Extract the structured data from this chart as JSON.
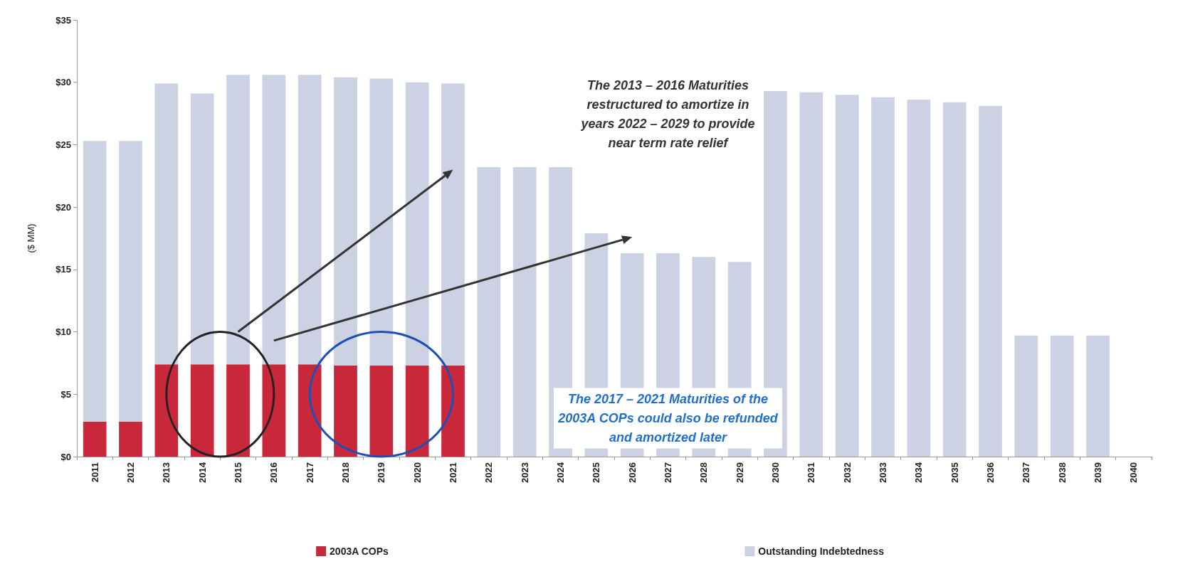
{
  "chart_data": {
    "type": "bar",
    "stacked": true,
    "ylabel": "($ MM)",
    "categories": [
      "2011",
      "2012",
      "2013",
      "2014",
      "2015",
      "2016",
      "2017",
      "2018",
      "2019",
      "2020",
      "2021",
      "2022",
      "2023",
      "2024",
      "2025",
      "2026",
      "2027",
      "2028",
      "2029",
      "2030",
      "2031",
      "2032",
      "2033",
      "2034",
      "2035",
      "2036",
      "2037",
      "2038",
      "2039",
      "2040"
    ],
    "series": [
      {
        "name": "2003A COPs",
        "color": "#c8283a",
        "values": [
          2.8,
          2.8,
          7.4,
          7.4,
          7.4,
          7.4,
          7.4,
          7.3,
          7.3,
          7.3,
          7.3,
          null,
          null,
          null,
          null,
          null,
          null,
          null,
          null,
          null,
          null,
          null,
          null,
          null,
          null,
          null,
          null,
          null,
          null,
          null
        ]
      },
      {
        "name": "Outstanding Indebtedness",
        "color": "#ccd1e3",
        "values": [
          22.5,
          22.5,
          22.5,
          21.7,
          23.2,
          23.2,
          23.2,
          23.1,
          23.0,
          22.7,
          22.6,
          23.2,
          23.2,
          23.2,
          17.9,
          16.3,
          16.3,
          16.0,
          15.6,
          29.3,
          29.2,
          29.0,
          28.8,
          28.6,
          28.4,
          28.1,
          9.7,
          9.7,
          9.7,
          null
        ]
      }
    ],
    "ylim": [
      0,
      35
    ],
    "yticks": [
      {
        "value": 0,
        "label": "$0"
      },
      {
        "value": 5,
        "label": "$5"
      },
      {
        "value": 10,
        "label": "$10"
      },
      {
        "value": 15,
        "label": "$15"
      },
      {
        "value": 20,
        "label": "$20"
      },
      {
        "value": 25,
        "label": "$25"
      },
      {
        "value": 30,
        "label": "$30"
      },
      {
        "value": 35,
        "label": "$35"
      }
    ],
    "grid": false,
    "legend": "bottom",
    "annotations": [
      "The 2013 – 2016 Maturities\nrestructured to amortize in\nyears 2022 – 2029 to provide\nnear term rate relief",
      "The 2017 – 2021 Maturities of the\n2003A COPs could also be refunded\nand amortized later"
    ]
  }
}
